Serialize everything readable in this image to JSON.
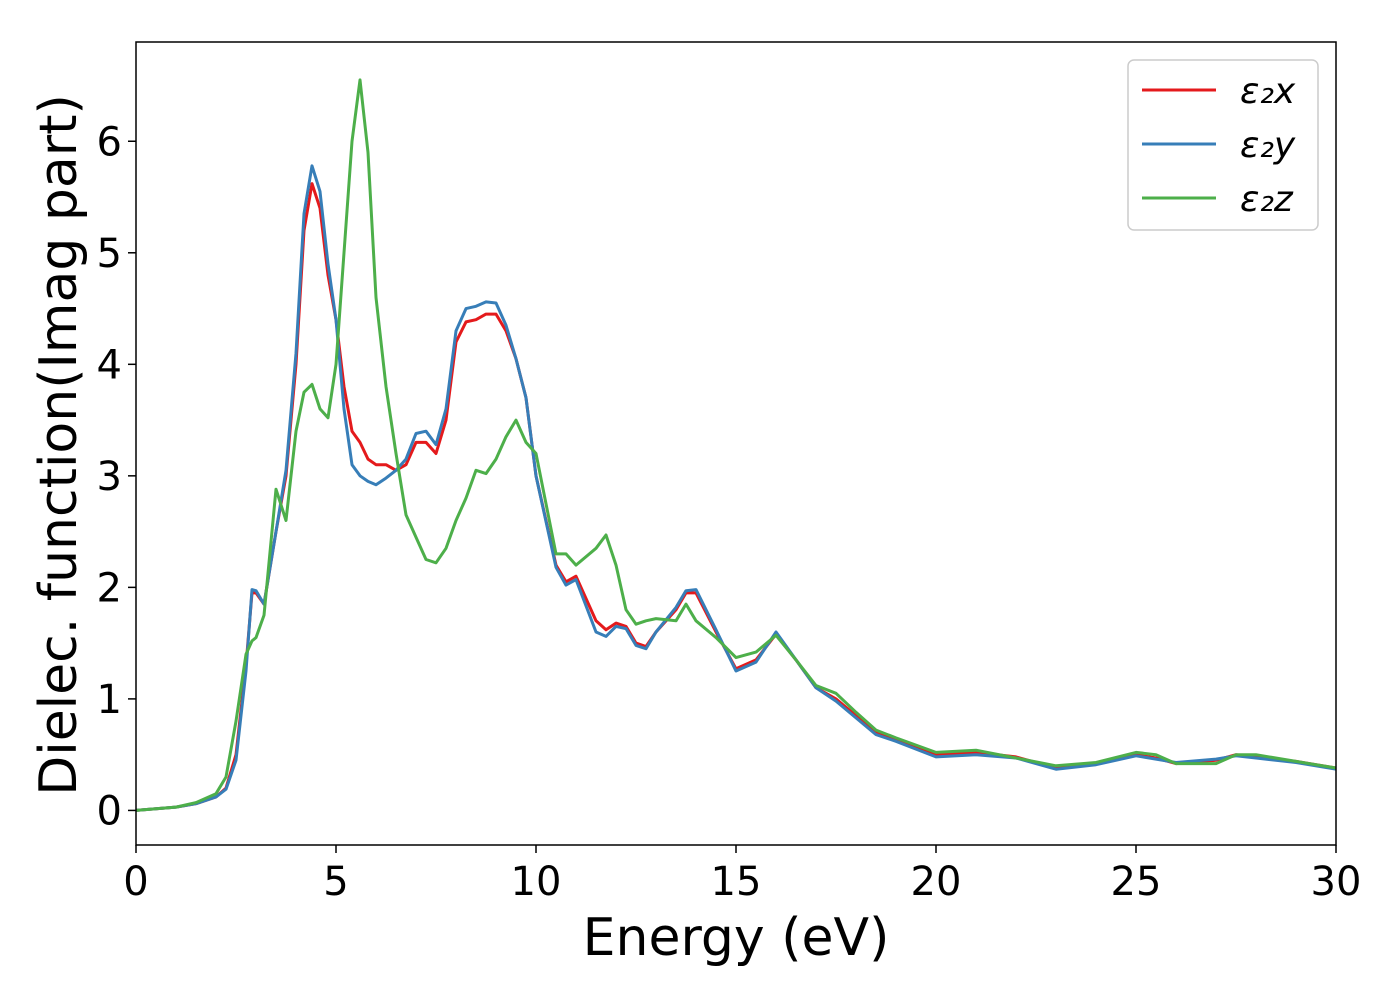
{
  "chart_data": {
    "type": "line",
    "xlabel": "Energy (eV)",
    "ylabel": "Dielec. function(Imag part)",
    "x": [
      0,
      1,
      1.5,
      2,
      2.25,
      2.5,
      2.75,
      2.9,
      3.0,
      3.2,
      3.5,
      3.75,
      4.0,
      4.2,
      4.4,
      4.6,
      4.8,
      5.0,
      5.2,
      5.4,
      5.6,
      5.8,
      6.0,
      6.25,
      6.5,
      6.75,
      7.0,
      7.25,
      7.5,
      7.75,
      8.0,
      8.25,
      8.5,
      8.75,
      9.0,
      9.25,
      9.5,
      9.75,
      10.0,
      10.5,
      10.75,
      11.0,
      11.5,
      11.75,
      12.0,
      12.25,
      12.5,
      12.75,
      13.0,
      13.5,
      13.75,
      14.0,
      14.5,
      15.0,
      15.5,
      16.0,
      16.5,
      17.0,
      17.5,
      18.0,
      18.5,
      19.0,
      20.0,
      21.0,
      22.0,
      23.0,
      24.0,
      25.0,
      25.5,
      26.0,
      27.0,
      27.5,
      28.0,
      29.0,
      30.0
    ],
    "series": [
      {
        "name": "ε₂x",
        "color": "#e41a1c",
        "values": [
          0,
          0.03,
          0.06,
          0.12,
          0.2,
          0.5,
          1.3,
          1.95,
          1.95,
          1.85,
          2.5,
          3.0,
          4.0,
          5.2,
          5.62,
          5.4,
          4.8,
          4.4,
          3.8,
          3.4,
          3.3,
          3.15,
          3.1,
          3.1,
          3.05,
          3.1,
          3.3,
          3.3,
          3.2,
          3.5,
          4.2,
          4.38,
          4.4,
          4.45,
          4.45,
          4.3,
          4.05,
          3.7,
          3.0,
          2.2,
          2.05,
          2.1,
          1.7,
          1.62,
          1.68,
          1.65,
          1.5,
          1.47,
          1.6,
          1.8,
          1.95,
          1.95,
          1.6,
          1.27,
          1.35,
          1.58,
          1.35,
          1.1,
          1.0,
          0.85,
          0.7,
          0.63,
          0.5,
          0.52,
          0.48,
          0.38,
          0.42,
          0.5,
          0.47,
          0.42,
          0.45,
          0.5,
          0.48,
          0.44,
          0.38
        ]
      },
      {
        "name": "ε₂y",
        "color": "#377eb8",
        "values": [
          0,
          0.03,
          0.06,
          0.12,
          0.19,
          0.45,
          1.25,
          1.98,
          1.97,
          1.85,
          2.5,
          3.05,
          4.1,
          5.35,
          5.78,
          5.55,
          4.9,
          4.4,
          3.6,
          3.1,
          3.0,
          2.95,
          2.92,
          2.98,
          3.05,
          3.15,
          3.38,
          3.4,
          3.28,
          3.6,
          4.3,
          4.5,
          4.52,
          4.56,
          4.55,
          4.35,
          4.05,
          3.7,
          3.0,
          2.18,
          2.02,
          2.07,
          1.6,
          1.56,
          1.65,
          1.63,
          1.48,
          1.45,
          1.6,
          1.82,
          1.97,
          1.98,
          1.62,
          1.25,
          1.33,
          1.6,
          1.35,
          1.1,
          0.98,
          0.83,
          0.68,
          0.62,
          0.48,
          0.5,
          0.47,
          0.37,
          0.41,
          0.49,
          0.46,
          0.43,
          0.46,
          0.49,
          0.47,
          0.43,
          0.37
        ]
      },
      {
        "name": "ε₂z",
        "color": "#4daf4a",
        "values": [
          0,
          0.03,
          0.07,
          0.15,
          0.3,
          0.8,
          1.4,
          1.52,
          1.55,
          1.75,
          2.88,
          2.6,
          3.4,
          3.75,
          3.82,
          3.6,
          3.52,
          4.0,
          5.0,
          6.0,
          6.55,
          5.9,
          4.6,
          3.8,
          3.2,
          2.65,
          2.45,
          2.25,
          2.22,
          2.35,
          2.6,
          2.8,
          3.05,
          3.02,
          3.15,
          3.35,
          3.5,
          3.3,
          3.2,
          2.3,
          2.3,
          2.2,
          2.35,
          2.47,
          2.2,
          1.8,
          1.67,
          1.7,
          1.72,
          1.7,
          1.85,
          1.7,
          1.55,
          1.37,
          1.42,
          1.57,
          1.35,
          1.12,
          1.05,
          0.88,
          0.72,
          0.65,
          0.52,
          0.54,
          0.47,
          0.4,
          0.43,
          0.52,
          0.5,
          0.42,
          0.42,
          0.5,
          0.5,
          0.44,
          0.38
        ]
      }
    ],
    "xlim": [
      0,
      30
    ],
    "xticks": [
      0,
      5,
      10,
      15,
      20,
      25,
      30
    ],
    "ylim": [
      -0.31,
      6.89
    ],
    "yticks": [
      0,
      1,
      2,
      3,
      4,
      5,
      6
    ],
    "legend": "upper right"
  }
}
